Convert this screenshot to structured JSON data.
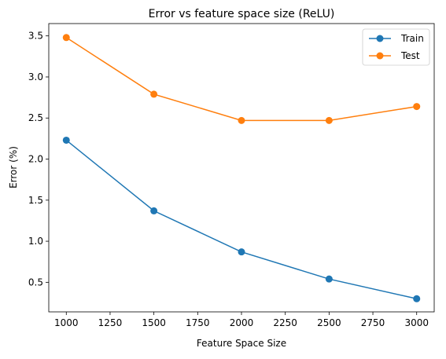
{
  "chart_data": {
    "type": "line",
    "title": "Error vs feature space size (ReLU)",
    "xlabel": "Feature Space Size",
    "ylabel": "Error (%)",
    "x": [
      1000,
      1500,
      2000,
      2500,
      3000
    ],
    "xlim": [
      900,
      3100
    ],
    "ylim": [
      0.14,
      3.65
    ],
    "xticks": [
      1000,
      1250,
      1500,
      1750,
      2000,
      2250,
      2500,
      2750,
      3000
    ],
    "yticks": [
      0.5,
      1.0,
      1.5,
      2.0,
      2.5,
      3.0,
      3.5
    ],
    "xtick_labels": [
      "1000",
      "1250",
      "1500",
      "1750",
      "2000",
      "2250",
      "2500",
      "2750",
      "3000"
    ],
    "ytick_labels": [
      "0.5",
      "1.0",
      "1.5",
      "2.0",
      "2.5",
      "3.0",
      "3.5"
    ],
    "grid": false,
    "legend_position": "top-right",
    "series": [
      {
        "name": "Train",
        "color": "#1f77b4",
        "marker": "circle",
        "values": [
          2.23,
          1.37,
          0.87,
          0.54,
          0.3
        ]
      },
      {
        "name": "Test",
        "color": "#ff7f0e",
        "marker": "circle",
        "values": [
          3.48,
          2.79,
          2.47,
          2.47,
          2.64
        ]
      }
    ]
  }
}
